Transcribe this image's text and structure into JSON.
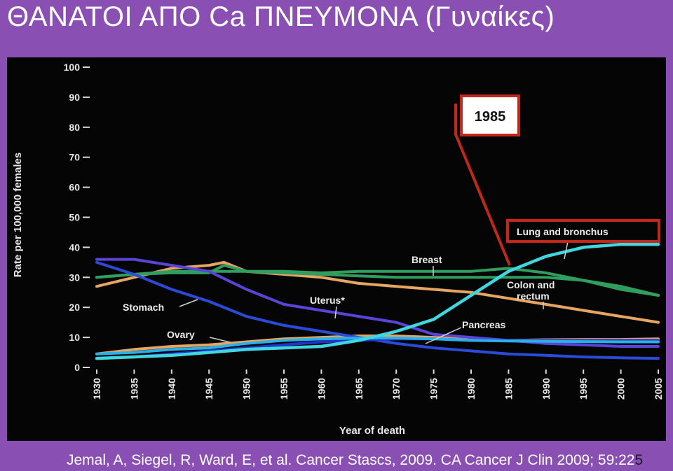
{
  "slide": {
    "title": "ΘΑΝΑΤΟΙ ΑΠΟ Ca ΠΝΕΥΜΟΝΑ (Γυναίκες)",
    "citation_main": "Jemal, A, Siegel, R, Ward, E, et al. Cancer Sta\u0019s\u0019cs, 2009. CA Cancer J Clin 2009; 59:22",
    "citation_page_end": "5"
  },
  "colors": {
    "background": "#8a4fb3",
    "chart_background": "#050505",
    "callout_red": "#c0281c",
    "lung": "#3fd6e0",
    "breast": "#2f9e5f",
    "colon": "#2f9e5f",
    "pancreas": "#2233cc",
    "uterus": "#5a44d8",
    "stomach": "#2a4ad8",
    "ovary": "#2ab0e8",
    "trend_orange": "#e6a560"
  },
  "callouts": {
    "year_box": "1985"
  },
  "chart_data": {
    "type": "line",
    "xlabel": "Year of death",
    "ylabel": "Rate per 100,000 females",
    "xlim": [
      1930,
      2005
    ],
    "ylim": [
      0,
      100
    ],
    "x_ticks": [
      "1930",
      "1935",
      "1940",
      "1945",
      "1950",
      "1955",
      "1960",
      "1965",
      "1970",
      "1975",
      "1980",
      "1985",
      "1990",
      "1995",
      "2000",
      "2005"
    ],
    "y_ticks": [
      "0",
      "10",
      "20",
      "30",
      "40",
      "50",
      "60",
      "70",
      "80",
      "90",
      "100"
    ],
    "grid": false,
    "series": [
      {
        "name": "Lung and bronchus",
        "color": "#3fd6e0",
        "x": [
          1930,
          1935,
          1940,
          1945,
          1950,
          1955,
          1960,
          1965,
          1970,
          1975,
          1980,
          1985,
          1990,
          1995,
          2000,
          2005
        ],
        "y": [
          3,
          3.5,
          4,
          5,
          6,
          6.5,
          7,
          9,
          12,
          16,
          24,
          32,
          37,
          40,
          41,
          41
        ]
      },
      {
        "name": "Breast",
        "color": "#2f9e5f",
        "x": [
          1930,
          1935,
          1940,
          1945,
          1947,
          1950,
          1955,
          1960,
          1965,
          1970,
          1975,
          1980,
          1985,
          1990,
          1995,
          2000,
          2005
        ],
        "y": [
          30,
          31,
          31.5,
          31.5,
          34,
          32,
          32,
          31.5,
          32,
          32,
          32,
          32,
          33,
          31.5,
          29,
          26,
          24
        ]
      },
      {
        "name": "Colon and rectum",
        "color": "#2f9e5f",
        "x": [
          1930,
          1935,
          1940,
          1945,
          1950,
          1955,
          1960,
          1965,
          1970,
          1975,
          1980,
          1985,
          1990,
          1995,
          2000,
          2005
        ],
        "y": [
          30,
          31,
          32,
          32,
          32,
          31.5,
          31,
          30.5,
          30,
          30,
          30,
          30,
          30,
          29,
          27,
          24
        ]
      },
      {
        "name": "Uterus*",
        "color": "#5a44d8",
        "x": [
          1930,
          1935,
          1940,
          1945,
          1950,
          1955,
          1960,
          1965,
          1970,
          1975,
          1980,
          1985,
          1990,
          1995,
          2000,
          2005
        ],
        "y": [
          36,
          36,
          34,
          32,
          26,
          21,
          19,
          17,
          15,
          11,
          10,
          9,
          8,
          7.5,
          7,
          7
        ]
      },
      {
        "name": "Stomach",
        "color": "#2a4ad8",
        "x": [
          1930,
          1935,
          1940,
          1945,
          1950,
          1955,
          1960,
          1965,
          1970,
          1975,
          1980,
          1985,
          1990,
          1995,
          2000,
          2005
        ],
        "y": [
          35,
          31,
          26,
          22,
          17,
          14,
          12,
          10,
          8,
          6.5,
          5.5,
          4.5,
          4,
          3.5,
          3.2,
          3
        ]
      },
      {
        "name": "Pancreas",
        "color": "#2233cc",
        "x": [
          1930,
          1935,
          1940,
          1945,
          1950,
          1955,
          1960,
          1965,
          1970,
          1975,
          1980,
          1985,
          1990,
          1995,
          2000,
          2005
        ],
        "y": [
          3,
          3.5,
          4.5,
          5.5,
          6.5,
          7.5,
          8.5,
          9,
          9.5,
          9.5,
          9,
          9,
          9,
          9,
          9,
          9
        ]
      },
      {
        "name": "Ovary",
        "color": "#2ab0e8",
        "x": [
          1930,
          1935,
          1940,
          1945,
          1950,
          1955,
          1960,
          1965,
          1970,
          1975,
          1980,
          1985,
          1990,
          1995,
          2000,
          2005
        ],
        "y": [
          4.5,
          5,
          6,
          6.5,
          8,
          9,
          9.5,
          9.8,
          9.8,
          9.5,
          9,
          8.8,
          8.7,
          8.6,
          8.5,
          8.5
        ]
      },
      {
        "color": "#e6a560",
        "x": [
          1930,
          1935,
          1940,
          1945,
          1947,
          1950,
          1955,
          1960,
          1965,
          1970,
          1975,
          1980,
          1985,
          1990,
          1995,
          2000,
          2005
        ],
        "y": [
          27,
          30,
          33,
          34,
          35,
          32,
          31,
          30,
          28,
          27,
          26,
          25,
          23,
          21,
          19,
          17,
          15
        ]
      },
      {
        "color": "#e6a560",
        "x": [
          1930,
          1935,
          1940,
          1945,
          1950,
          1955,
          1960,
          1965,
          1970,
          1975,
          1980,
          1985,
          1990,
          1995,
          2000,
          2005
        ],
        "y": [
          4.5,
          6,
          7,
          7.5,
          8.5,
          9.5,
          10,
          10.5,
          10.5,
          10,
          9.5,
          9,
          9.2,
          9.3,
          9.3,
          9.5
        ]
      }
    ],
    "labels": {
      "lung": "Lung and bronchus",
      "breast": "Breast",
      "colon_line1": "Colon and",
      "colon_line2": "rectum",
      "uterus": "Uterus*",
      "stomach": "Stomach",
      "ovary": "Ovary",
      "pancreas": "Pancreas"
    }
  }
}
